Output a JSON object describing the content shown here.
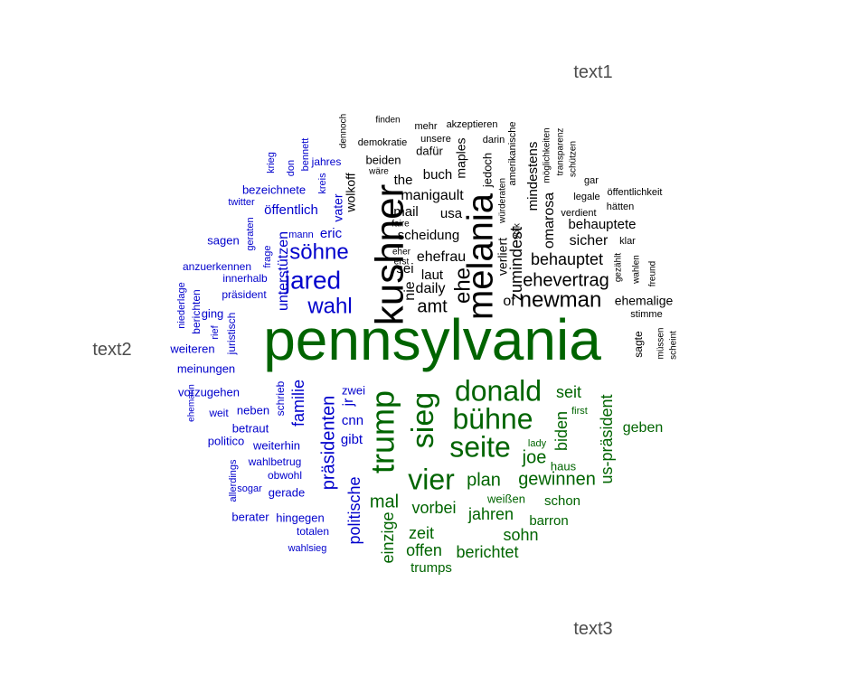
{
  "chart_data": {
    "type": "comparison-wordcloud",
    "colors": {
      "text1": "#000000",
      "text2": "#0000cc",
      "text3": "#006400"
    },
    "groups": [
      {
        "id": "text1",
        "label": "text1",
        "color": "#000000",
        "words": [
          "kushner",
          "melania",
          "newman",
          "ehevertrag",
          "behauptet",
          "ehe",
          "amt",
          "manigault",
          "omarosa",
          "mindestens",
          "zumindest",
          "behauptete",
          "sicher",
          "ehefrau",
          "daily",
          "laut",
          "scheidung",
          "buch",
          "maples",
          "usa",
          "mail",
          "the",
          "beiden",
          "dafür",
          "wolkoff",
          "sei",
          "nie",
          "of",
          "verliert",
          "ehemalige",
          "sagte",
          "stimme",
          "müssen",
          "scheint",
          "jedoch",
          "demokratie",
          "unsere",
          "darin",
          "mehr",
          "akzeptieren",
          "finden",
          "dennoch",
          "amerikanische",
          "würderaten",
          "volk",
          "möglichkeiten",
          "transparenz",
          "schützen",
          "öffentlichkeit",
          "gar",
          "legale",
          "hätten",
          "verdient",
          "klar",
          "gezählt",
          "wahlen",
          "freund",
          "faire",
          "eher",
          "erst",
          "wäre"
        ]
      },
      {
        "id": "text2",
        "label": "text2",
        "color": "#0000cc",
        "words": [
          "jared",
          "söhne",
          "wahl",
          "eric",
          "öffentlich",
          "vater",
          "unterstützen",
          "präsidenten",
          "familie",
          "jr",
          "cnn",
          "gibt",
          "politische",
          "zwei",
          "schrieb",
          "neben",
          "betraut",
          "weiterhin",
          "wahlbetrug",
          "obwohl",
          "gerade",
          "hingegen",
          "totalen",
          "wahlsieg",
          "berater",
          "sogar",
          "allerdings",
          "politico",
          "weit",
          "vorzugehen",
          "meinungen",
          "weiteren",
          "ging",
          "berichten",
          "niederlage",
          "juristisch",
          "rief",
          "präsident",
          "innerhalb",
          "anzuerkennen",
          "frage",
          "sagen",
          "geraten",
          "mann",
          "twitter",
          "bezeichnete",
          "kreis",
          "jahres",
          "bennett",
          "don",
          "krieg",
          "ehemann"
        ]
      },
      {
        "id": "text3",
        "label": "text3",
        "color": "#006400",
        "words": [
          "pennsylvania",
          "trump",
          "sieg",
          "donald",
          "bühne",
          "seite",
          "vier",
          "joe",
          "biden",
          "seit",
          "us-präsident",
          "gewinnen",
          "plan",
          "mal",
          "vorbei",
          "jahren",
          "einzige",
          "zeit",
          "offen",
          "berichtet",
          "sohn",
          "barron",
          "schon",
          "weißen",
          "haus",
          "lady",
          "first",
          "geben",
          "trumps"
        ]
      }
    ]
  }
}
